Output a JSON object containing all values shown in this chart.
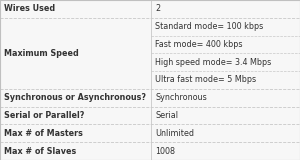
{
  "rows": [
    {
      "label": "Wires Used",
      "values": [
        "2"
      ],
      "label_row": 0
    },
    {
      "label": "Maximum Speed",
      "values": [
        "Standard mode= 100 kbps",
        "Fast mode= 400 kbps",
        "High speed mode= 3.4 Mbps",
        "Ultra fast mode= 5 Mbps"
      ],
      "label_row": 0
    },
    {
      "label": "Synchronous or Asynchronous?",
      "values": [
        "Synchronous"
      ],
      "label_row": 0
    },
    {
      "label": "Serial or Parallel?",
      "values": [
        "Serial"
      ],
      "label_row": 0
    },
    {
      "label": "Max # of Masters",
      "values": [
        "Unlimited"
      ],
      "label_row": 0
    },
    {
      "label": "Max # of Slaves",
      "values": [
        "1008"
      ],
      "label_row": 0
    }
  ],
  "col_split": 0.503,
  "bg_color": "#f7f7f7",
  "cell_line_color": "#c8c8c8",
  "text_color": "#333333",
  "label_font_size": 5.8,
  "value_font_size": 5.8,
  "outer_border_color": "#c0c0c0",
  "figw": 3.0,
  "figh": 1.6,
  "dpi": 100
}
